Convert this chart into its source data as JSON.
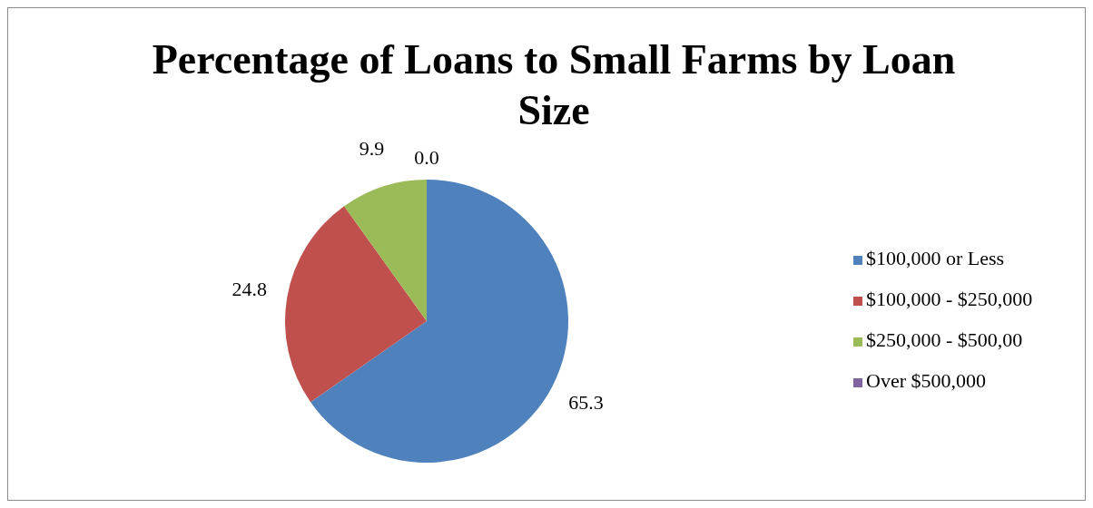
{
  "chart_data": {
    "type": "pie",
    "title": "Percentage of Loans to Small Farms by Loan Size",
    "categories": [
      "$100,000 or Less",
      "$100,000 - $250,000",
      "$250,000 - $500,00",
      "Over $500,000"
    ],
    "values": [
      65.3,
      24.8,
      9.9,
      0.0
    ],
    "colors": [
      "#4f81bd",
      "#c0504d",
      "#9bbb59",
      "#8064a2"
    ],
    "value_labels": [
      "65.3",
      "24.8",
      "9.9",
      "0.0"
    ],
    "legend": "right"
  }
}
